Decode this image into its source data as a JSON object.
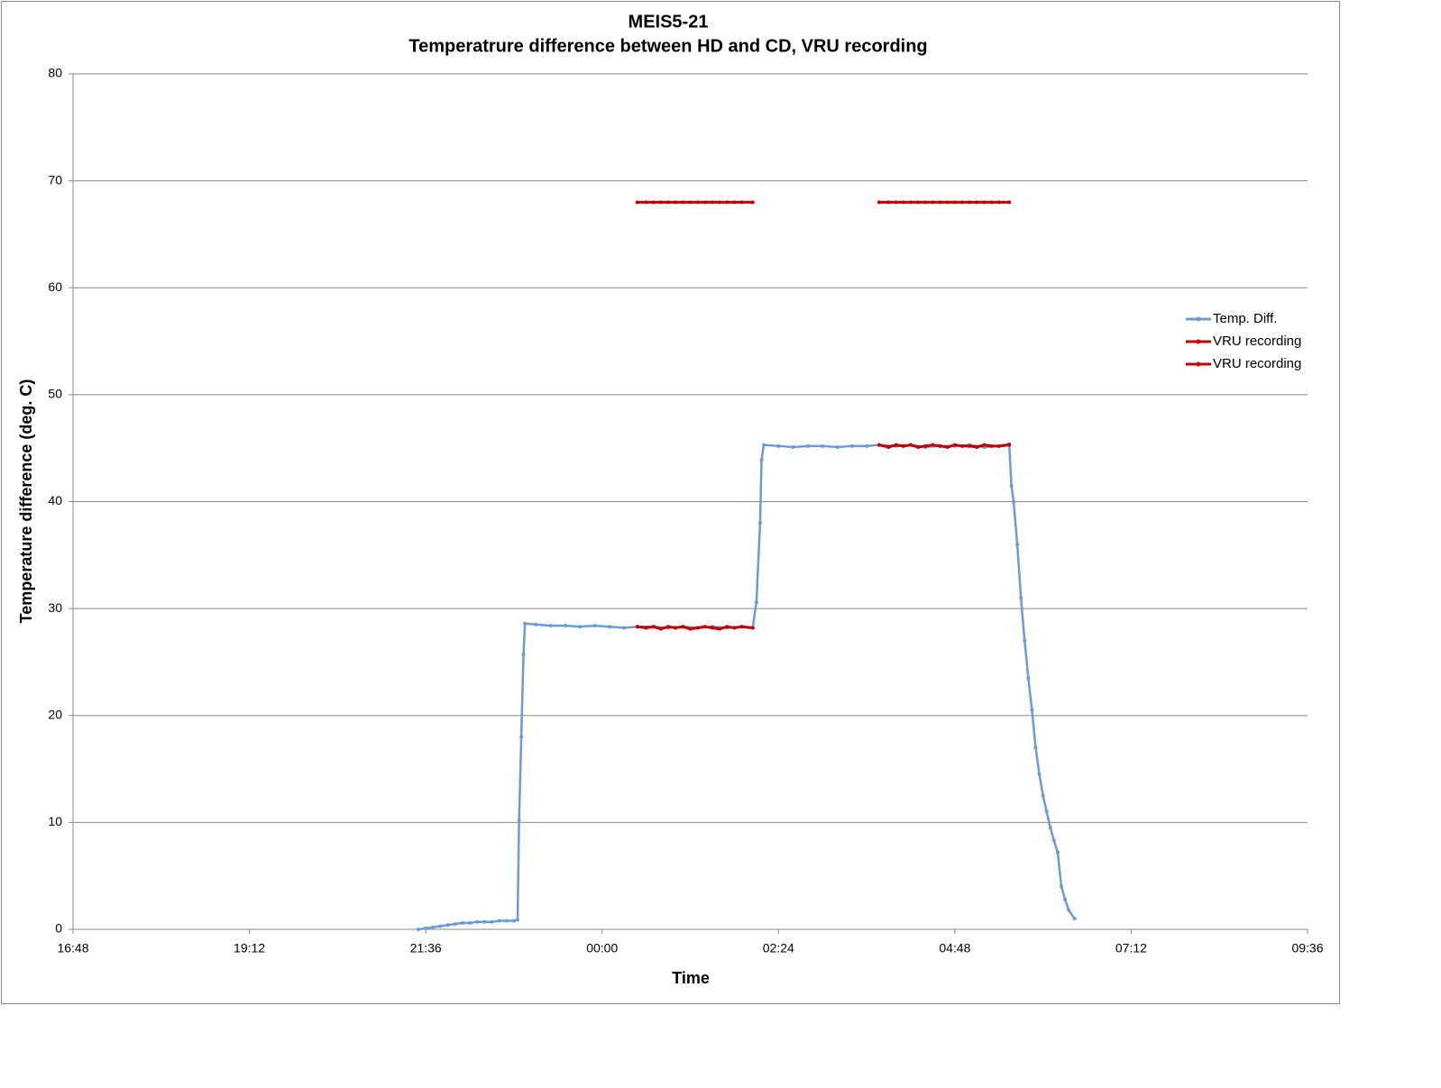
{
  "chart_data": {
    "type": "line",
    "title": "MEIS5-21",
    "subtitle": "Temperatrure difference between HD and CD, VRU recording",
    "x_label": "Time",
    "y_label": "Temperature difference (deg. C)",
    "xlim": [
      16.8,
      33.6
    ],
    "xticks": [
      {
        "value": 16.8,
        "label": "16:48"
      },
      {
        "value": 19.2,
        "label": "19:12"
      },
      {
        "value": 21.6,
        "label": "21:36"
      },
      {
        "value": 24,
        "label": "00:00"
      },
      {
        "value": 26.4,
        "label": "02:24"
      },
      {
        "value": 28.8,
        "label": "04:48"
      },
      {
        "value": 31.2,
        "label": "07:12"
      },
      {
        "value": 33.6,
        "label": "09:36"
      }
    ],
    "ylim": [
      0,
      80
    ],
    "yticks": [
      0,
      10,
      20,
      30,
      40,
      50,
      60,
      70,
      80
    ],
    "grid": true,
    "legend": "right",
    "series": [
      {
        "name": "Temp. Diff.",
        "color": "#6a9bd8",
        "x": [
          21.5,
          21.6,
          21.7,
          21.8,
          21.9,
          22.0,
          22.1,
          22.2,
          22.3,
          22.4,
          22.5,
          22.6,
          22.7,
          22.8,
          22.85,
          22.87,
          22.9,
          22.93,
          22.95,
          23.1,
          23.3,
          23.5,
          23.7,
          23.9,
          24.1,
          24.3,
          24.48,
          24.7,
          24.9,
          25.1,
          25.3,
          25.5,
          25.7,
          25.9,
          26.05,
          26.1,
          26.15,
          26.17,
          26.2,
          26.4,
          26.6,
          26.8,
          27.0,
          27.2,
          27.4,
          27.6,
          27.77,
          28.0,
          28.2,
          28.4,
          28.6,
          28.8,
          29.0,
          29.2,
          29.4,
          29.54,
          29.57,
          29.6,
          29.65,
          29.7,
          29.75,
          29.8,
          29.85,
          29.9,
          29.95,
          30.0,
          30.05,
          30.1,
          30.15,
          30.2,
          30.25,
          30.3,
          30.35,
          30.43
        ],
        "values": [
          0.0,
          0.1,
          0.2,
          0.3,
          0.4,
          0.5,
          0.6,
          0.6,
          0.7,
          0.7,
          0.7,
          0.8,
          0.8,
          0.8,
          0.9,
          10.2,
          18.0,
          25.7,
          28.6,
          28.5,
          28.4,
          28.4,
          28.3,
          28.4,
          28.3,
          28.2,
          28.3,
          28.3,
          28.2,
          28.3,
          28.2,
          28.3,
          28.2,
          28.3,
          28.2,
          30.6,
          38.0,
          43.9,
          45.3,
          45.2,
          45.1,
          45.2,
          45.2,
          45.1,
          45.2,
          45.2,
          45.3,
          45.2,
          45.3,
          45.1,
          45.2,
          45.2,
          45.3,
          45.1,
          45.2,
          45.4,
          41.5,
          40.0,
          36.0,
          31.0,
          27.0,
          23.5,
          20.5,
          17.0,
          14.5,
          12.5,
          11.0,
          9.5,
          8.3,
          7.2,
          4.0,
          2.8,
          1.8,
          1.0
        ]
      },
      {
        "name": "VRU recording",
        "color": "#c00000",
        "x": [
          24.48,
          24.6,
          24.7,
          24.8,
          24.9,
          25.0,
          25.1,
          25.2,
          25.3,
          25.4,
          25.5,
          25.6,
          25.7,
          25.8,
          25.9,
          26.05,
          null,
          27.77,
          27.9,
          28.0,
          28.1,
          28.2,
          28.3,
          28.4,
          28.5,
          28.6,
          28.7,
          28.8,
          28.9,
          29.0,
          29.1,
          29.2,
          29.3,
          29.4,
          29.54
        ],
        "values": [
          68,
          68,
          68,
          68,
          68,
          68,
          68,
          68,
          68,
          68,
          68,
          68,
          68,
          68,
          68,
          68,
          null,
          68,
          68,
          68,
          68,
          68,
          68,
          68,
          68,
          68,
          68,
          68,
          68,
          68,
          68,
          68,
          68,
          68,
          68
        ]
      },
      {
        "name": "VRU recording",
        "color": "#c00000",
        "x": [
          24.48,
          24.6,
          24.7,
          24.8,
          24.9,
          25.0,
          25.1,
          25.2,
          25.3,
          25.4,
          25.5,
          25.6,
          25.7,
          25.8,
          25.9,
          26.05,
          null,
          27.77,
          27.9,
          28.0,
          28.1,
          28.2,
          28.3,
          28.4,
          28.5,
          28.6,
          28.7,
          28.8,
          28.9,
          29.0,
          29.1,
          29.2,
          29.3,
          29.4,
          29.54
        ],
        "values": [
          28.3,
          28.2,
          28.3,
          28.1,
          28.3,
          28.2,
          28.3,
          28.1,
          28.2,
          28.3,
          28.2,
          28.1,
          28.3,
          28.2,
          28.3,
          28.2,
          null,
          45.3,
          45.1,
          45.3,
          45.2,
          45.3,
          45.1,
          45.2,
          45.3,
          45.2,
          45.1,
          45.3,
          45.2,
          45.2,
          45.1,
          45.3,
          45.2,
          45.2,
          45.3
        ]
      }
    ]
  }
}
